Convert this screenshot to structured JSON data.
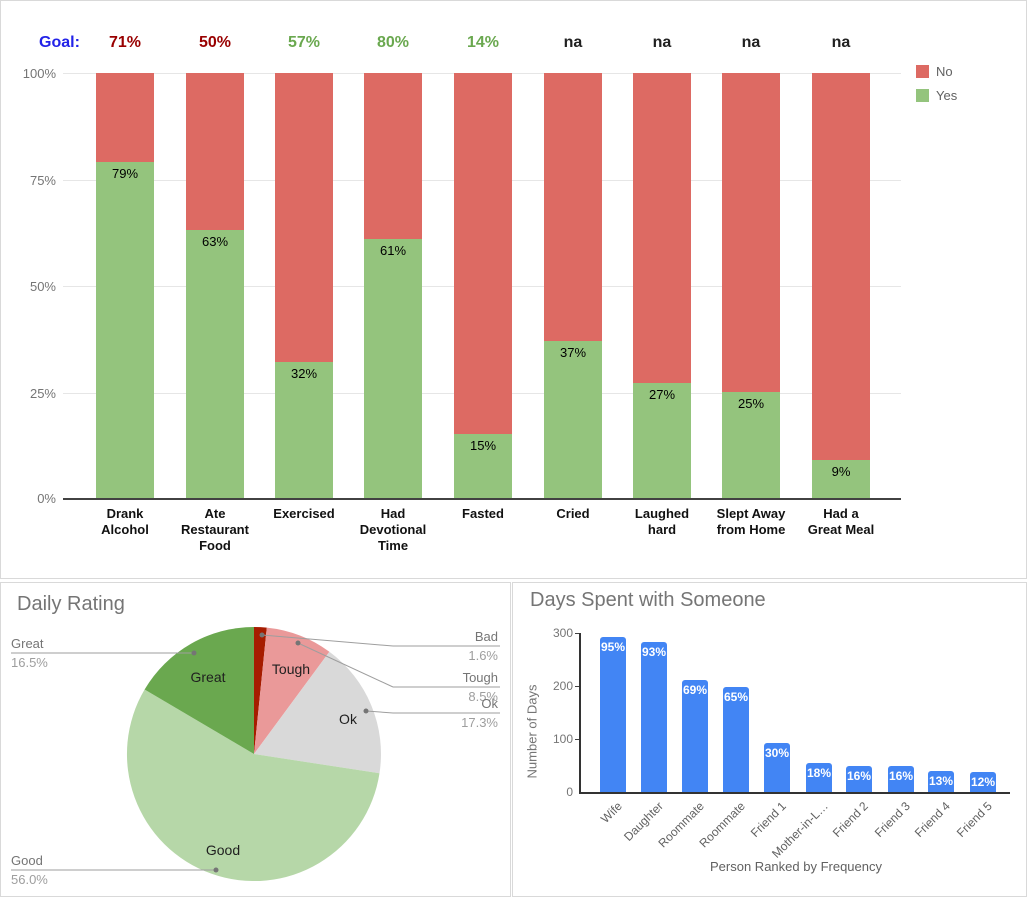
{
  "chart_data": [
    {
      "type": "bar",
      "subtype": "stacked-100-percent",
      "title": "",
      "goal_row": {
        "label": "Goal:",
        "label_color": "#2323e8",
        "values": [
          "71%",
          "50%",
          "57%",
          "80%",
          "14%",
          "na",
          "na",
          "na",
          "na"
        ],
        "colors": [
          "#990000",
          "#990000",
          "#6aa84f",
          "#6aa84f",
          "#6aa84f",
          "#212121",
          "#212121",
          "#212121",
          "#212121"
        ]
      },
      "categories": [
        "Drank\nAlcohol",
        "Ate\nRestaurant\nFood",
        "Exercised",
        "Had\nDevotional\nTime",
        "Fasted",
        "Cried",
        "Laughed\nhard",
        "Slept Away\nfrom Home",
        "Had a\nGreat Meal"
      ],
      "series": [
        {
          "name": "Yes",
          "color": "#94c47d",
          "values": [
            79,
            63,
            32,
            61,
            15,
            37,
            27,
            25,
            9
          ]
        },
        {
          "name": "No",
          "color": "#dd6a63",
          "values": [
            21,
            37,
            68,
            39,
            85,
            63,
            73,
            75,
            91
          ]
        }
      ],
      "bar_labels": [
        "79%",
        "63%",
        "32%",
        "61%",
        "15%",
        "37%",
        "27%",
        "25%",
        "9%"
      ],
      "y_ticks": [
        "100%",
        "75%",
        "50%",
        "25%",
        "0%"
      ],
      "ylim": [
        0,
        100
      ],
      "grid": true,
      "legend_position": "right"
    },
    {
      "type": "pie",
      "title": "Daily Rating",
      "slices": [
        {
          "label": "Bad",
          "value": 1.6,
          "pct_label": "1.6%",
          "color": "#a61c00"
        },
        {
          "label": "Tough",
          "value": 8.5,
          "pct_label": "8.5%",
          "color": "#ea9999"
        },
        {
          "label": "Ok",
          "value": 17.3,
          "pct_label": "17.3%",
          "color": "#d9d9d9"
        },
        {
          "label": "Good",
          "value": 56.0,
          "pct_label": "56.0%",
          "color": "#b6d7a8"
        },
        {
          "label": "Great",
          "value": 16.5,
          "pct_label": "16.5%",
          "color": "#6aa84f"
        }
      ]
    },
    {
      "type": "bar",
      "title": "Days Spent with Someone",
      "xlabel": "Person Ranked by Frequency",
      "ylabel": "Number of Days",
      "y_ticks": [
        "300",
        "200",
        "100",
        "0"
      ],
      "ylim": [
        0,
        300
      ],
      "grid": false,
      "bar_color": "#4285f4",
      "categories": [
        "Wife",
        "Daughter",
        "Roommate",
        "Roommate",
        "Friend 1",
        "Mother-in-L…",
        "Friend 2",
        "Friend 3",
        "Friend 4",
        "Friend 5"
      ],
      "values": [
        292,
        283,
        211,
        199,
        92,
        55,
        49,
        49,
        40,
        37
      ],
      "bar_labels": [
        "95%",
        "93%",
        "69%",
        "65%",
        "30%",
        "18%",
        "16%",
        "16%",
        "13%",
        "12%"
      ]
    }
  ]
}
